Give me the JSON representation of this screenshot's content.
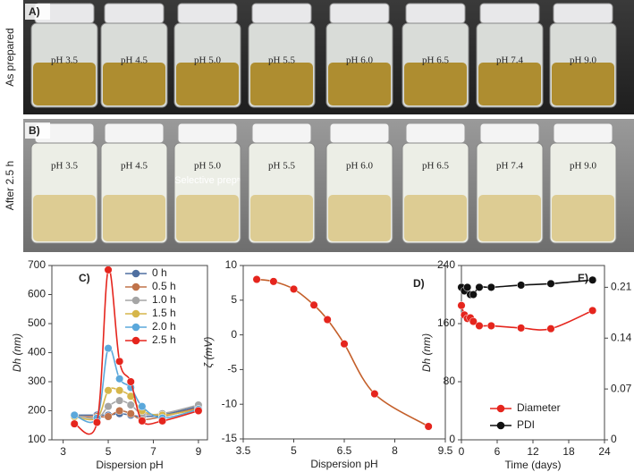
{
  "panels": [
    {
      "label": "A)",
      "side_label": "As prepared",
      "vial_labels": [
        "pH 3.5",
        "pH 4.5",
        "pH 5.0",
        "pH 5.5",
        "pH 6.0",
        "pH 6.5",
        "pH 7.4",
        "pH 9.0"
      ]
    },
    {
      "label": "B)",
      "side_label": "After 2.5 h",
      "vial_labels": [
        "pH 3.5",
        "pH 4.5",
        "pH 5.0",
        "pH 5.5",
        "pH 6.0",
        "pH 6.5",
        "pH 7.4",
        "pH 9.0"
      ],
      "note": "Selective prepⁿ"
    }
  ],
  "chart_data": [
    {
      "type": "line",
      "title": "C)",
      "x_label": "Dispersion pH",
      "y_label": "Dh (nm)",
      "x": [
        3.5,
        4.5,
        5.0,
        5.5,
        6.0,
        6.5,
        7.4,
        9.0
      ],
      "series": [
        {
          "name": "0 h",
          "color": "#4f6fa0",
          "values": [
            185,
            185,
            185,
            190,
            185,
            180,
            185,
            215
          ]
        },
        {
          "name": "0.5 h",
          "color": "#c0734a",
          "values": [
            180,
            180,
            180,
            200,
            190,
            170,
            180,
            210
          ]
        },
        {
          "name": "1.0 h",
          "color": "#a5a5a5",
          "values": [
            185,
            175,
            215,
            235,
            220,
            190,
            190,
            220
          ]
        },
        {
          "name": "1.5 h",
          "color": "#d6b64a",
          "values": [
            180,
            175,
            270,
            270,
            250,
            200,
            185,
            205
          ]
        },
        {
          "name": "2.0 h",
          "color": "#5ba8db",
          "values": [
            185,
            175,
            415,
            310,
            280,
            215,
            175,
            205
          ]
        },
        {
          "name": "2.5 h",
          "color": "#e5251d",
          "values": [
            155,
            160,
            685,
            370,
            300,
            165,
            165,
            200
          ]
        }
      ],
      "xlim": [
        2.5,
        9.4
      ],
      "xticks": [
        3,
        5,
        7,
        9
      ],
      "ylim": [
        100,
        700
      ],
      "yticks": [
        100,
        200,
        300,
        400,
        500,
        600,
        700
      ],
      "legend": "top-right"
    },
    {
      "type": "line",
      "title": "D)",
      "x_label": "Dispersion pH",
      "y_label": "ζ (mV)",
      "x": [
        3.9,
        4.4,
        5.0,
        5.6,
        6.0,
        6.5,
        7.4,
        9.0
      ],
      "series": [
        {
          "color": "#c45f2a",
          "marker_color": "#e5251d",
          "values": [
            8,
            7.7,
            6.6,
            4.3,
            2.2,
            -1.3,
            -8.5,
            -13.2
          ]
        }
      ],
      "xlim": [
        3.5,
        9.5
      ],
      "xticks": [
        3.5,
        5,
        6.5,
        8,
        9.5
      ],
      "ylim": [
        -15,
        10
      ],
      "yticks": [
        -15,
        -10,
        -5,
        0,
        5,
        10
      ]
    },
    {
      "type": "line",
      "title": "E)",
      "x_label": "Time (days)",
      "y_label": "Dh (nm)",
      "x": [
        0,
        0.5,
        1,
        1.5,
        2,
        3,
        5,
        10,
        15,
        22
      ],
      "series": [
        {
          "name": "Diameter",
          "color": "#e5251d",
          "values": [
            185,
            172,
            167,
            168,
            163,
            157,
            157,
            154,
            153,
            178
          ]
        },
        {
          "name": "PDI",
          "color": "#111111",
          "axis": "y2",
          "values": [
            0.21,
            0.205,
            0.21,
            0.2,
            0.2,
            0.21,
            0.21,
            0.213,
            0.215,
            0.22
          ]
        }
      ],
      "xlim": [
        0,
        24
      ],
      "xticks": [
        0,
        6,
        12,
        18,
        24
      ],
      "ylim": [
        0,
        240
      ],
      "yticks": [
        0,
        80,
        160,
        240
      ],
      "y2lim": [
        0,
        0.24
      ],
      "y2ticks": [
        0,
        0.07,
        0.14,
        0.21
      ],
      "legend": "bottom-right"
    }
  ]
}
